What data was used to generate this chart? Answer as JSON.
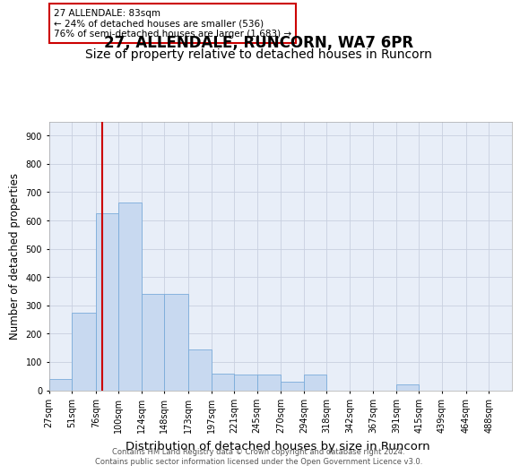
{
  "title": "27, ALLENDALE, RUNCORN, WA7 6PR",
  "subtitle": "Size of property relative to detached houses in Runcorn",
  "xlabel": "Distribution of detached houses by size in Runcorn",
  "ylabel": "Number of detached properties",
  "bar_color": "#c8d9f0",
  "bar_edge_color": "#7aabda",
  "background_color": "#ffffff",
  "plot_bg_color": "#e8eef8",
  "grid_color": "#c8d0e0",
  "red_line_x": 83,
  "annotation_text": "27 ALLENDALE: 83sqm\n← 24% of detached houses are smaller (536)\n76% of semi-detached houses are larger (1,683) →",
  "annotation_box_color": "#ffffff",
  "annotation_box_edge_color": "#cc0000",
  "bin_edges": [
    27,
    51,
    76,
    100,
    124,
    148,
    173,
    197,
    221,
    245,
    270,
    294,
    318,
    342,
    367,
    391,
    415,
    439,
    464,
    488,
    512
  ],
  "bar_heights": [
    40,
    275,
    625,
    665,
    340,
    340,
    145,
    60,
    55,
    55,
    30,
    55,
    0,
    0,
    0,
    20,
    0,
    0,
    0,
    0
  ],
  "ylim": [
    0,
    950
  ],
  "yticks": [
    0,
    100,
    200,
    300,
    400,
    500,
    600,
    700,
    800,
    900
  ],
  "footer_text": "Contains HM Land Registry data © Crown copyright and database right 2024.\nContains public sector information licensed under the Open Government Licence v3.0.",
  "title_fontsize": 12,
  "subtitle_fontsize": 10,
  "tick_fontsize": 7,
  "ylabel_fontsize": 8.5,
  "xlabel_fontsize": 9.5,
  "footer_fontsize": 6,
  "annot_fontsize": 7.5
}
